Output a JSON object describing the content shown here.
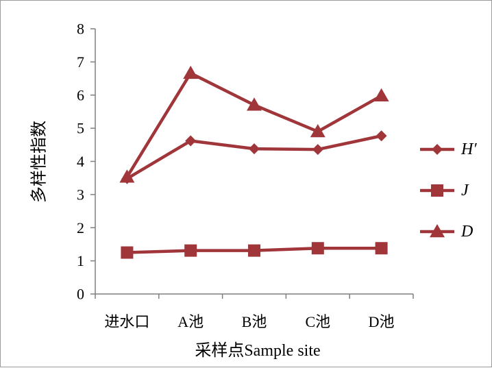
{
  "chart_data": {
    "type": "line",
    "categories": [
      "进水口",
      "A池",
      "B池",
      "C池",
      "D池"
    ],
    "series": [
      {
        "name": "H′",
        "marker": "diamond",
        "color": "#a0353a",
        "values": [
          3.48,
          4.62,
          4.38,
          4.36,
          4.77
        ]
      },
      {
        "name": "J",
        "marker": "square",
        "color": "#a0353a",
        "values": [
          1.25,
          1.31,
          1.31,
          1.38,
          1.38
        ]
      },
      {
        "name": "D",
        "marker": "triangle",
        "color": "#a0353a",
        "values": [
          3.53,
          6.66,
          5.7,
          4.9,
          5.98
        ]
      }
    ],
    "y_ticks": [
      "0",
      "1",
      "2",
      "3",
      "4",
      "5",
      "6",
      "7",
      "8"
    ],
    "ylim": [
      0,
      8
    ],
    "xlabel": "采样点Sample site",
    "ylabel": "多样性指数",
    "grid": false,
    "legend": "right"
  }
}
